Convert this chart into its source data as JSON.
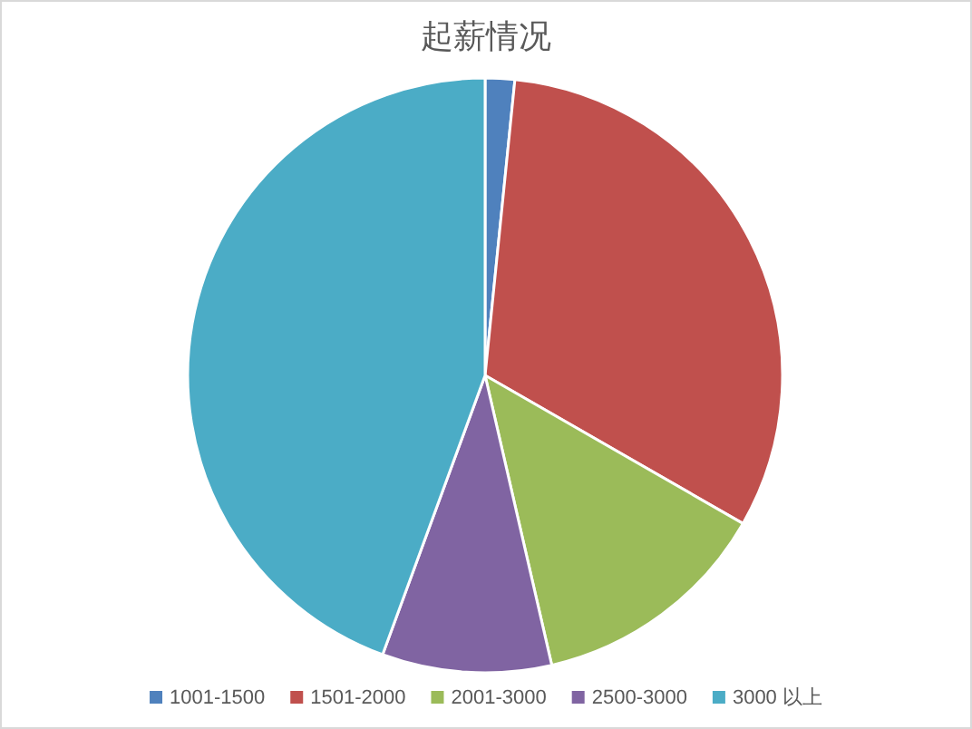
{
  "chart_data": {
    "type": "pie",
    "title": "起薪情况",
    "categories": [
      "1001-1500",
      "1501-2000",
      "2001-3000",
      "2500-3000",
      "3000 以上"
    ],
    "values": [
      1.6,
      31.7,
      13.1,
      9.2,
      44.4
    ],
    "colors": [
      "#4f81bd",
      "#c0504d",
      "#9bbb59",
      "#8064a2",
      "#4bacc6"
    ],
    "legend": "bottom"
  }
}
